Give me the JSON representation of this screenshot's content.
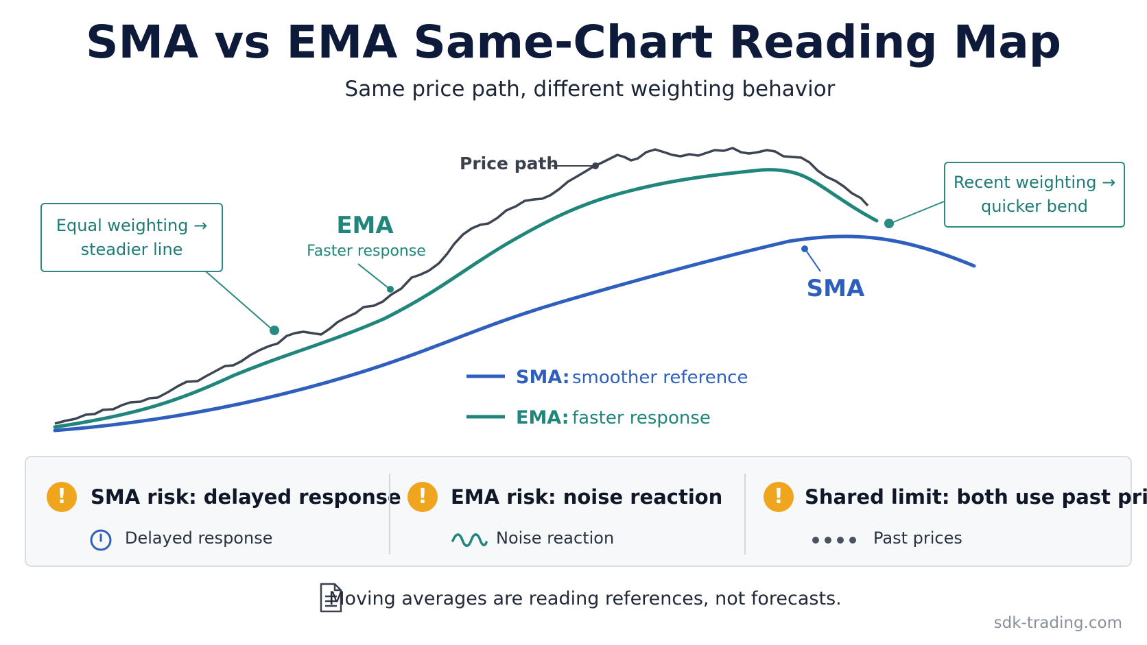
{
  "header": {
    "title": "SMA vs EMA Same-Chart Reading Map",
    "subtitle": "Same price path, different weighting behavior"
  },
  "colors": {
    "price": "#3d4452",
    "ema": "#20857a",
    "sma": "#2f5fbd",
    "warning": "#f0a51e",
    "callout_border": "#2a8a82"
  },
  "chart_data": {
    "type": "line",
    "series": [
      {
        "name": "Price path",
        "values": [
          1.0,
          1.4,
          1.9,
          2.5,
          3.2,
          3.8,
          4.3,
          4.9,
          5.6,
          6.3,
          7.1,
          8.0,
          8.9,
          9.7,
          10.4,
          10.9,
          11.3,
          11.5,
          11.4,
          11.0,
          10.3,
          9.5
        ]
      },
      {
        "name": "EMA",
        "values": [
          1.0,
          1.3,
          1.7,
          2.2,
          2.8,
          3.4,
          4.0,
          4.6,
          5.2,
          5.9,
          6.7,
          7.5,
          8.3,
          9.0,
          9.6,
          10.1,
          10.4,
          10.6,
          10.5,
          10.2,
          9.6,
          8.9
        ]
      },
      {
        "name": "SMA",
        "values": [
          1.0,
          1.1,
          1.3,
          1.6,
          2.0,
          2.4,
          2.9,
          3.4,
          3.9,
          4.5,
          5.1,
          5.7,
          6.2,
          6.7,
          7.1,
          7.5,
          7.9,
          8.1,
          8.1,
          7.9,
          7.5,
          7.1
        ]
      }
    ],
    "labels": {
      "price": "Price path",
      "ema": "EMA",
      "ema_note": "Faster response",
      "sma": "SMA"
    },
    "legend": [
      {
        "key": "SMA:",
        "text": "smoother reference"
      },
      {
        "key": "EMA:",
        "text": "faster response"
      }
    ],
    "grid": false
  },
  "callouts": {
    "left": {
      "line1": "Equal weighting →",
      "line2": "steadier line"
    },
    "right": {
      "line1": "Recent weighting →",
      "line2": "quicker bend"
    }
  },
  "risks": [
    {
      "title": "SMA risk: delayed response",
      "sub": "Delayed response",
      "icon": "clock-icon"
    },
    {
      "title": "EMA risk: noise reaction",
      "sub": "Noise reaction",
      "icon": "wave-icon"
    },
    {
      "title": "Shared limit: both use past prices",
      "sub": "Past prices",
      "icon": "dots-icon"
    }
  ],
  "footer": {
    "note": "Moving averages are reading references, not forecasts.",
    "watermark": "sdk-trading.com"
  }
}
